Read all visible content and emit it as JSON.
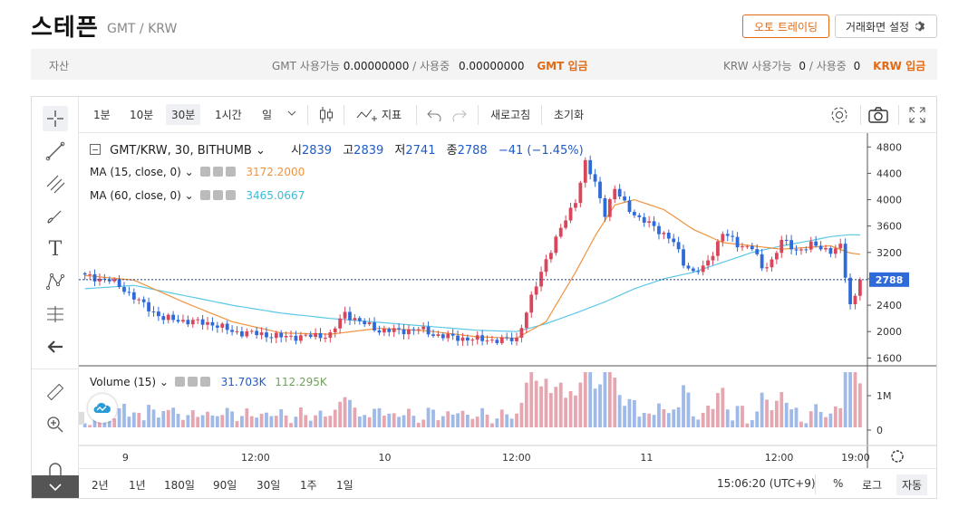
{
  "header": {
    "title": "스테픈",
    "pair": "GMT / KRW",
    "auto_trade_label": "오토 트레이딩",
    "screen_settings_label": "거래화면 설정"
  },
  "assets": {
    "label": "자산",
    "gmt_available_label": "GMT 사용가능",
    "gmt_available": "0.00000000",
    "gmt_inuse_label": "/ 사용중",
    "gmt_inuse": "0.00000000",
    "gmt_deposit": "GMT 입금",
    "krw_available_label": "KRW 사용가능",
    "krw_available": "0",
    "krw_inuse_label": "/ 사용중",
    "krw_inuse": "0",
    "krw_deposit": "KRW 입금"
  },
  "toolbar": {
    "intervals": [
      "1분",
      "10분",
      "30분",
      "1시간",
      "일"
    ],
    "active_interval": "30분",
    "indicator_label": "지표",
    "refresh_label": "새로고침",
    "reset_label": "초기화"
  },
  "legend": {
    "symbol": "GMT/KRW, 30, BITHUMB",
    "open_label": "시",
    "open": "2839",
    "high_label": "고",
    "high": "2839",
    "low_label": "저",
    "low": "2741",
    "close_label": "종",
    "close": "2788",
    "change": "−41 (−1.45%)",
    "ma15_label": "MA (15, close, 0)",
    "ma15_value": "3172.2000",
    "ma60_label": "MA (60, close, 0)",
    "ma60_value": "3465.0667",
    "volume_label": "Volume (15)",
    "volume_value1": "31.703K",
    "volume_value2": "112.295K"
  },
  "colors": {
    "up": "#d9465a",
    "down": "#2f6bd8",
    "ma15": "#f0933e",
    "ma60": "#5cc8e6",
    "accent": "#e26a14"
  },
  "chart_data": {
    "type": "candlestick",
    "y_ticks": [
      4800,
      4400,
      4000,
      3600,
      3200,
      2800,
      2400,
      2000,
      1600
    ],
    "ylim": [
      1550,
      4900
    ],
    "current_price": 2788,
    "current_price_label": "2788",
    "x_ticks": [
      "9",
      "12:00",
      "10",
      "12:00",
      "11",
      "12:00",
      "19:00"
    ],
    "volume_ticks": [
      "1M",
      "0"
    ],
    "anchors": [
      [
        0,
        2840
      ],
      [
        5,
        2780
      ],
      [
        8,
        2640
      ],
      [
        12,
        2400
      ],
      [
        16,
        2200
      ],
      [
        22,
        2150
      ],
      [
        26,
        2120
      ],
      [
        30,
        2000
      ],
      [
        36,
        1960
      ],
      [
        40,
        1920
      ],
      [
        46,
        1930
      ],
      [
        50,
        1950
      ],
      [
        53,
        2280
      ],
      [
        56,
        2150
      ],
      [
        60,
        2020
      ],
      [
        64,
        2010
      ],
      [
        68,
        2040
      ],
      [
        71,
        1960
      ],
      [
        75,
        1910
      ],
      [
        80,
        1880
      ],
      [
        85,
        1870
      ],
      [
        88,
        1890
      ],
      [
        90,
        2300
      ],
      [
        92,
        2700
      ],
      [
        94,
        3100
      ],
      [
        96,
        3400
      ],
      [
        98,
        3700
      ],
      [
        100,
        4000
      ],
      [
        102,
        4550
      ],
      [
        104,
        4250
      ],
      [
        106,
        3800
      ],
      [
        108,
        4150
      ],
      [
        110,
        3950
      ],
      [
        113,
        3700
      ],
      [
        116,
        3600
      ],
      [
        120,
        3350
      ],
      [
        122,
        3050
      ],
      [
        124,
        2900
      ],
      [
        126,
        2950
      ],
      [
        128,
        3200
      ],
      [
        130,
        3500
      ],
      [
        133,
        3320
      ],
      [
        136,
        3280
      ],
      [
        138,
        2950
      ],
      [
        140,
        3080
      ],
      [
        142,
        3380
      ],
      [
        145,
        3230
      ],
      [
        148,
        3310
      ],
      [
        152,
        3230
      ],
      [
        154,
        3280
      ],
      [
        156,
        2400
      ],
      [
        157,
        2560
      ],
      [
        158,
        2788
      ]
    ],
    "ma15": [
      [
        0,
        2850
      ],
      [
        10,
        2780
      ],
      [
        20,
        2450
      ],
      [
        30,
        2150
      ],
      [
        40,
        1980
      ],
      [
        50,
        1960
      ],
      [
        60,
        2050
      ],
      [
        70,
        2010
      ],
      [
        80,
        1920
      ],
      [
        88,
        1900
      ],
      [
        94,
        2150
      ],
      [
        100,
        2900
      ],
      [
        104,
        3450
      ],
      [
        108,
        3920
      ],
      [
        112,
        4000
      ],
      [
        118,
        3850
      ],
      [
        124,
        3550
      ],
      [
        130,
        3350
      ],
      [
        136,
        3300
      ],
      [
        142,
        3250
      ],
      [
        148,
        3280
      ],
      [
        152,
        3300
      ],
      [
        156,
        3190
      ],
      [
        158,
        3172
      ]
    ],
    "ma60": [
      [
        0,
        2650
      ],
      [
        10,
        2700
      ],
      [
        20,
        2550
      ],
      [
        30,
        2400
      ],
      [
        40,
        2280
      ],
      [
        50,
        2200
      ],
      [
        60,
        2140
      ],
      [
        70,
        2080
      ],
      [
        80,
        2020
      ],
      [
        88,
        2000
      ],
      [
        94,
        2120
      ],
      [
        100,
        2280
      ],
      [
        106,
        2450
      ],
      [
        112,
        2650
      ],
      [
        118,
        2800
      ],
      [
        124,
        2900
      ],
      [
        130,
        3050
      ],
      [
        136,
        3200
      ],
      [
        142,
        3300
      ],
      [
        148,
        3380
      ],
      [
        152,
        3440
      ],
      [
        156,
        3470
      ],
      [
        158,
        3465
      ]
    ]
  },
  "bottom": {
    "ranges": [
      "2년",
      "1년",
      "180일",
      "90일",
      "30일",
      "1주",
      "1일"
    ],
    "clock": "15:06:20 (UTC+9)",
    "percent_label": "%",
    "log_label": "로그",
    "auto_label": "자동"
  }
}
